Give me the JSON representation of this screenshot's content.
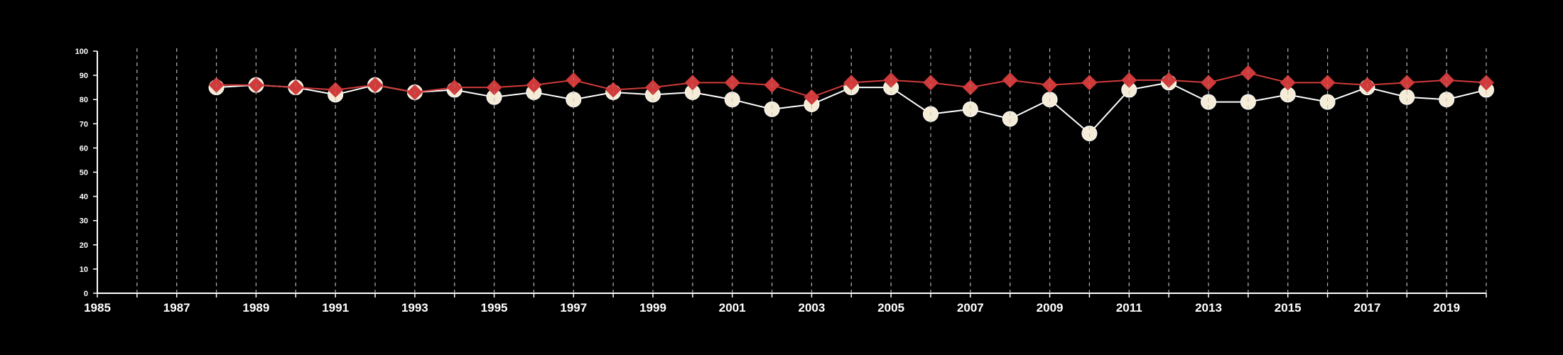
{
  "chart_data": {
    "type": "line",
    "title": "",
    "xlabel": "",
    "ylabel": "",
    "xlim": [
      1985,
      2020
    ],
    "ylim": [
      0,
      100
    ],
    "x_ticks": [
      1985,
      1987,
      1989,
      1991,
      1993,
      1995,
      1997,
      1999,
      2001,
      2003,
      2005,
      2007,
      2009,
      2011,
      2013,
      2015,
      2017,
      2019
    ],
    "y_ticks": [
      0,
      10,
      20,
      30,
      40,
      50,
      60,
      70,
      80,
      90,
      100
    ],
    "vertical_gridlines_every_year": true,
    "gridline_style": "dashed",
    "x": [
      1988,
      1989,
      1990,
      1991,
      1992,
      1993,
      1994,
      1995,
      1996,
      1997,
      1998,
      1999,
      2000,
      2001,
      2002,
      2003,
      2004,
      2005,
      2006,
      2007,
      2008,
      2009,
      2010,
      2011,
      2012,
      2013,
      2014,
      2015,
      2016,
      2017,
      2018,
      2019,
      2020
    ],
    "series": [
      {
        "color": "#f5ecd7",
        "line_color": "#ffffff",
        "marker": "circle",
        "values": [
          85,
          86,
          85,
          82,
          86,
          83,
          84,
          81,
          83,
          80,
          83,
          82,
          83,
          80,
          76,
          78,
          85,
          85,
          74,
          76,
          72,
          80,
          66,
          84,
          87,
          79,
          79,
          82,
          79,
          85,
          81,
          80,
          84
        ]
      },
      {
        "color": "#d13a3a",
        "line_color": "#d13a3a",
        "marker": "diamond",
        "values": [
          86,
          86,
          85,
          84,
          86,
          83,
          85,
          85,
          86,
          88,
          84,
          85,
          87,
          87,
          86,
          81,
          87,
          88,
          87,
          85,
          88,
          86,
          87,
          88,
          88,
          87,
          91,
          87,
          87,
          86,
          87,
          88,
          87
        ]
      }
    ],
    "background": "#000000",
    "axis_color": "#ffffff"
  }
}
